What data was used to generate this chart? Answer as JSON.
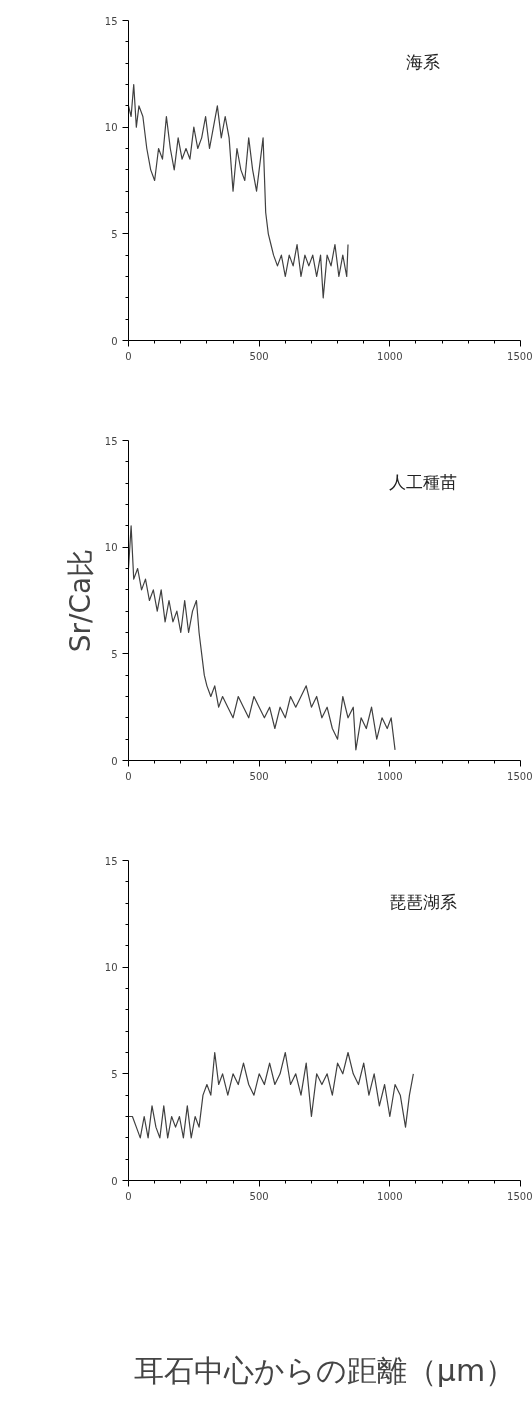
{
  "chart_data": [
    {
      "type": "line",
      "title": "海系",
      "xlim": [
        0,
        1500
      ],
      "ylim": [
        0,
        15
      ],
      "xticks": [
        0,
        500,
        1000,
        1500
      ],
      "yticks": [
        0,
        5,
        10,
        15
      ],
      "grid": false,
      "color": "#404040",
      "x": [
        0,
        10,
        20,
        30,
        40,
        55,
        70,
        85,
        100,
        115,
        130,
        145,
        160,
        175,
        190,
        205,
        220,
        235,
        250,
        265,
        280,
        295,
        310,
        325,
        340,
        355,
        370,
        385,
        400,
        415,
        430,
        445,
        460,
        475,
        490,
        505,
        515,
        525,
        535,
        545,
        555,
        570,
        585,
        600,
        615,
        630,
        645,
        660,
        675,
        690,
        705,
        720,
        735,
        745,
        760,
        775,
        790,
        805,
        820,
        835,
        840
      ],
      "values": [
        11,
        10.5,
        12,
        10,
        11,
        10.5,
        9,
        8,
        7.5,
        9,
        8.5,
        10.5,
        9,
        8,
        9.5,
        8.5,
        9,
        8.5,
        10,
        9,
        9.5,
        10.5,
        9,
        10,
        11,
        9.5,
        10.5,
        9.5,
        7,
        9,
        8,
        7.5,
        9.5,
        8,
        7,
        8.5,
        9.5,
        6,
        5,
        4.5,
        4,
        3.5,
        4,
        3,
        4,
        3.5,
        4.5,
        3,
        4,
        3.5,
        4,
        3,
        4,
        2,
        4,
        3.5,
        4.5,
        3,
        4,
        3,
        4.5
      ]
    },
    {
      "type": "line",
      "title": "人工種苗",
      "ylabel": "Sr/Ca比",
      "xlim": [
        0,
        1500
      ],
      "ylim": [
        0,
        15
      ],
      "xticks": [
        0,
        500,
        1000,
        1500
      ],
      "yticks": [
        0,
        5,
        10,
        15
      ],
      "grid": false,
      "color": "#404040",
      "x": [
        0,
        10,
        20,
        35,
        50,
        65,
        80,
        95,
        110,
        125,
        140,
        155,
        170,
        185,
        200,
        215,
        230,
        245,
        260,
        270,
        280,
        290,
        300,
        315,
        330,
        345,
        360,
        380,
        400,
        420,
        440,
        460,
        480,
        500,
        520,
        540,
        560,
        580,
        600,
        620,
        640,
        660,
        680,
        700,
        720,
        740,
        760,
        780,
        800,
        820,
        840,
        860,
        870,
        890,
        910,
        930,
        950,
        970,
        990,
        1005,
        1020
      ],
      "values": [
        9,
        11,
        8.5,
        9,
        8,
        8.5,
        7.5,
        8,
        7,
        8,
        6.5,
        7.5,
        6.5,
        7,
        6,
        7.5,
        6,
        7,
        7.5,
        6,
        5,
        4,
        3.5,
        3,
        3.5,
        2.5,
        3,
        2.5,
        2,
        3,
        2.5,
        2,
        3,
        2.5,
        2,
        2.5,
        1.5,
        2.5,
        2,
        3,
        2.5,
        3,
        3.5,
        2.5,
        3,
        2,
        2.5,
        1.5,
        1,
        3,
        2,
        2.5,
        0.5,
        2,
        1.5,
        2.5,
        1,
        2,
        1.5,
        2,
        0.5
      ]
    },
    {
      "type": "line",
      "title": "琵琶湖系",
      "xlabel": "耳石中心からの距離（μm）",
      "xlim": [
        0,
        1500
      ],
      "ylim": [
        0,
        15
      ],
      "xticks": [
        0,
        500,
        1000,
        1500
      ],
      "yticks": [
        0,
        5,
        10,
        15
      ],
      "grid": false,
      "color": "#404040",
      "x": [
        0,
        15,
        30,
        45,
        60,
        75,
        90,
        105,
        120,
        135,
        150,
        165,
        180,
        195,
        210,
        225,
        240,
        255,
        270,
        285,
        300,
        315,
        330,
        345,
        360,
        380,
        400,
        420,
        440,
        460,
        480,
        500,
        520,
        540,
        560,
        580,
        600,
        620,
        640,
        660,
        680,
        700,
        720,
        740,
        760,
        780,
        800,
        820,
        840,
        860,
        880,
        900,
        920,
        940,
        960,
        980,
        1000,
        1020,
        1040,
        1060,
        1075,
        1090
      ],
      "values": [
        3,
        3,
        2.5,
        2,
        3,
        2,
        3.5,
        2.5,
        2,
        3.5,
        2,
        3,
        2.5,
        3,
        2,
        3.5,
        2,
        3,
        2.5,
        4,
        4.5,
        4,
        6,
        4.5,
        5,
        4,
        5,
        4.5,
        5.5,
        4.5,
        4,
        5,
        4.5,
        5.5,
        4.5,
        5,
        6,
        4.5,
        5,
        4,
        5.5,
        3,
        5,
        4.5,
        5,
        4,
        5.5,
        5,
        6,
        5,
        4.5,
        5.5,
        4,
        5,
        3.5,
        4.5,
        3,
        4.5,
        4,
        2.5,
        4,
        5
      ]
    }
  ]
}
